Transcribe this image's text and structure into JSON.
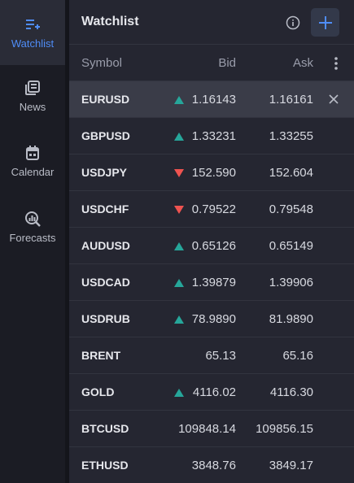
{
  "sidebar": {
    "items": [
      {
        "label": "Watchlist",
        "icon": "watchlist-add-icon",
        "active": true
      },
      {
        "label": "News",
        "icon": "news-icon",
        "active": false
      },
      {
        "label": "Calendar",
        "icon": "calendar-icon",
        "active": false
      },
      {
        "label": "Forecasts",
        "icon": "forecasts-icon",
        "active": false
      }
    ]
  },
  "panel": {
    "title": "Watchlist",
    "info_icon": "info-icon",
    "add_icon": "plus-icon",
    "columns": {
      "symbol": "Symbol",
      "bid": "Bid",
      "ask": "Ask"
    },
    "menu_icon": "kebab-menu-icon"
  },
  "rows": [
    {
      "symbol": "EURUSD",
      "dir": "up",
      "bid": "1.16143",
      "ask": "1.16161",
      "selected": true
    },
    {
      "symbol": "GBPUSD",
      "dir": "up",
      "bid": "1.33231",
      "ask": "1.33255"
    },
    {
      "symbol": "USDJPY",
      "dir": "down",
      "bid": "152.590",
      "ask": "152.604"
    },
    {
      "symbol": "USDCHF",
      "dir": "down",
      "bid": "0.79522",
      "ask": "0.79548"
    },
    {
      "symbol": "AUDUSD",
      "dir": "up",
      "bid": "0.65126",
      "ask": "0.65149"
    },
    {
      "symbol": "USDCAD",
      "dir": "up",
      "bid": "1.39879",
      "ask": "1.39906"
    },
    {
      "symbol": "USDRUB",
      "dir": "up",
      "bid": "78.9890",
      "ask": "81.9890"
    },
    {
      "symbol": "BRENT",
      "dir": "",
      "bid": "65.13",
      "ask": "65.16"
    },
    {
      "symbol": "GOLD",
      "dir": "up",
      "bid": "4116.02",
      "ask": "4116.30"
    },
    {
      "symbol": "BTCUSD",
      "dir": "",
      "bid": "109848.14",
      "ask": "109856.15"
    },
    {
      "symbol": "ETHUSD",
      "dir": "",
      "bid": "3848.76",
      "ask": "3849.17"
    }
  ],
  "colors": {
    "accent": "#4f8df7",
    "up": "#26a69a",
    "down": "#ef5350"
  }
}
